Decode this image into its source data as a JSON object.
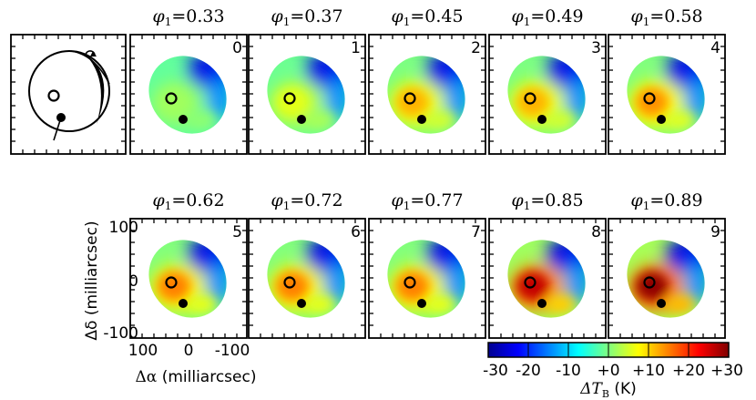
{
  "figure": {
    "phase_prefix": "φ",
    "phase_subscript": "1",
    "phase_equals": "=",
    "xlabel_symbol": "Δα",
    "xlabel_unit": " (milliarcsec)",
    "ylabel": "Δδ (milliarcsec)",
    "x_ticks": [
      "100",
      "0",
      "-100"
    ],
    "y_ticks": [
      "100",
      "0",
      "-100"
    ],
    "colorbar_ticks": [
      "-30",
      "-20",
      "-10",
      "+0",
      "+10",
      "+20",
      "+30"
    ],
    "colorbar_label_symbol": "ΔT",
    "colorbar_label_subscript": "B",
    "colorbar_label_unit": " (K)"
  },
  "chart_data": {
    "type": "heatmap",
    "description_units": "brightness temperature change in K",
    "xlim": [
      120,
      -120
    ],
    "ylim": [
      -120,
      120
    ],
    "color_range": [
      -30,
      30
    ],
    "panels": [
      {
        "index": "0",
        "phase": "0.33",
        "peak": 2
      },
      {
        "index": "1",
        "phase": "0.37",
        "peak": 6
      },
      {
        "index": "2",
        "phase": "0.45",
        "peak": 12
      },
      {
        "index": "3",
        "phase": "0.49",
        "peak": 12
      },
      {
        "index": "4",
        "phase": "0.58",
        "peak": 14
      },
      {
        "index": "5",
        "phase": "0.62",
        "peak": 15
      },
      {
        "index": "6",
        "phase": "0.72",
        "peak": 15
      },
      {
        "index": "7",
        "phase": "0.77",
        "peak": 15
      },
      {
        "index": "8",
        "phase": "0.85",
        "peak": 26
      },
      {
        "index": "9",
        "phase": "0.89",
        "peak": 29
      }
    ]
  }
}
